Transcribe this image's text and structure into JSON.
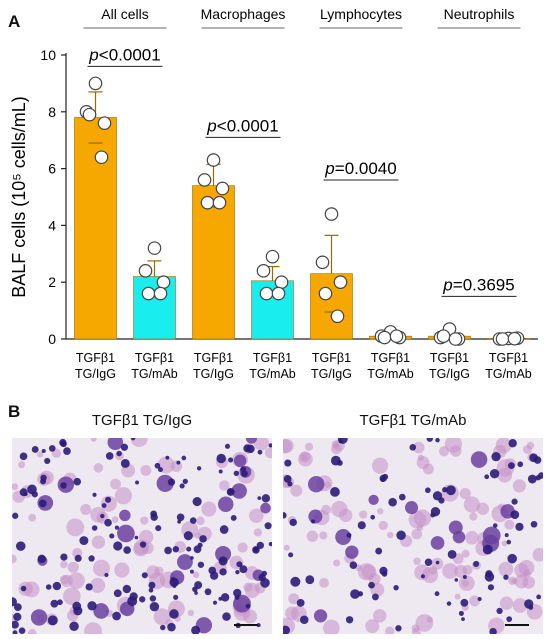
{
  "panel_a_label": "A",
  "panel_b_label": "B",
  "chart_data": {
    "type": "bar",
    "ylabel": "BALF cells (10⁵ cells/mL)",
    "ylim": [
      0,
      10
    ],
    "yticks": [
      0,
      2,
      4,
      6,
      8,
      10
    ],
    "categories": [
      [
        "TGFβ1",
        "TG/IgG"
      ],
      [
        "TGFβ1",
        "TG/mAb"
      ],
      [
        "TGFβ1",
        "TG/IgG"
      ],
      [
        "TGFβ1",
        "TG/mAb"
      ],
      [
        "TGFβ1",
        "TG/IgG"
      ],
      [
        "TGFβ1",
        "TG/mAb"
      ],
      [
        "TGFβ1",
        "TG/IgG"
      ],
      [
        "TGFβ1",
        "TG/mAb"
      ]
    ],
    "values": [
      7.8,
      2.2,
      5.4,
      2.05,
      2.3,
      0.1,
      0.1,
      0.02
    ],
    "errors": [
      0.9,
      0.55,
      0.75,
      0.5,
      1.35,
      0.1,
      0.1,
      0.02
    ],
    "bar_colors": [
      "#f7a800",
      "#19eded",
      "#f7a800",
      "#19eded",
      "#f7a800",
      "#f7a800",
      "#f7a800",
      "#f7a800"
    ],
    "points": [
      [
        9.0,
        8.0,
        7.6,
        7.9,
        6.4
      ],
      [
        3.2,
        2.4,
        2.0,
        1.6,
        1.6
      ],
      [
        6.3,
        5.6,
        5.3,
        4.8,
        4.8
      ],
      [
        2.9,
        2.4,
        2.0,
        1.6,
        1.6
      ],
      [
        4.4,
        2.7,
        2.0,
        1.6,
        0.8
      ],
      [
        0.25,
        0.1,
        0.05,
        0.05,
        0.1
      ],
      [
        0.35,
        0.05,
        0.0,
        0.1,
        0.0
      ],
      [
        0.02,
        0.0,
        0.03,
        0.0,
        0.01
      ]
    ],
    "groups": [
      {
        "label": "All cells"
      },
      {
        "label": "Macrophages"
      },
      {
        "label": "Lymphocytes"
      },
      {
        "label": "Neutrophils"
      }
    ],
    "annotations": [
      {
        "p": "p",
        "text": "<0.0001",
        "level": 9.6
      },
      {
        "p": "p",
        "text": "<0.0001",
        "level": 7.1
      },
      {
        "p": "p",
        "text": "=0.0040",
        "level": 5.6
      },
      {
        "p": "p",
        "text": "=0.3695",
        "level": 1.5
      }
    ]
  },
  "micrographs": [
    {
      "title": "TGFβ1 TG/IgG"
    },
    {
      "title": "TGFβ1 TG/mAb"
    }
  ],
  "colors": {
    "stain_dark": "#2b1c78",
    "stain_mid": "#6a3fa0",
    "stain_pink": "#c58fc6",
    "background": "#eee9f1"
  }
}
